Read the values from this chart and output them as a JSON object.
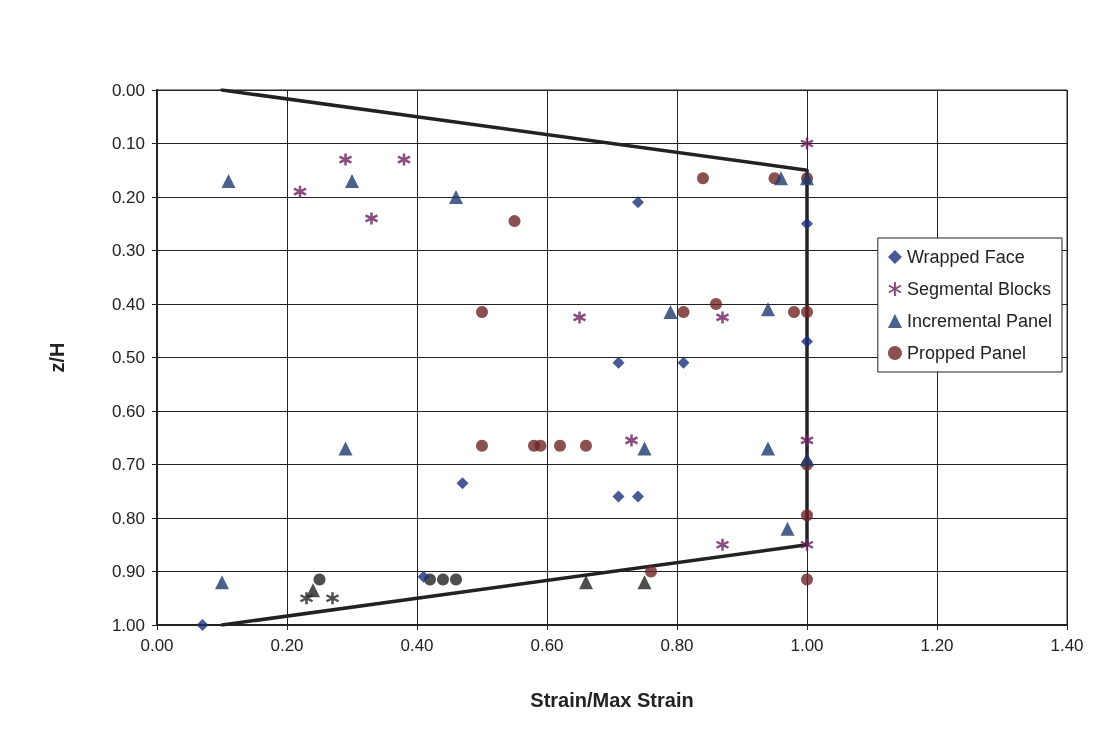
{
  "chart_data": {
    "type": "scatter",
    "xlabel": "Strain/Max Strain",
    "ylabel": "z/H",
    "xlim": [
      0,
      1.4
    ],
    "xticks": [
      {
        "value": 0,
        "label": "0.00"
      },
      {
        "value": 0.2,
        "label": "0.20"
      },
      {
        "value": 0.4,
        "label": "0.40"
      },
      {
        "value": 0.6,
        "label": "0.60"
      },
      {
        "value": 0.8,
        "label": "0.80"
      },
      {
        "value": 1.0,
        "label": "1.00"
      },
      {
        "value": 1.2,
        "label": "1.20"
      },
      {
        "value": 1.4,
        "label": "1.40"
      }
    ],
    "ylim": [
      1,
      0
    ],
    "yticks": [
      {
        "value": 0,
        "label": "0.00"
      },
      {
        "value": 0.1,
        "label": "0.10"
      },
      {
        "value": 0.2,
        "label": "0.20"
      },
      {
        "value": 0.3,
        "label": "0.30"
      },
      {
        "value": 0.4,
        "label": "0.40"
      },
      {
        "value": 0.5,
        "label": "0.50"
      },
      {
        "value": 0.6,
        "label": "0.60"
      },
      {
        "value": 0.7,
        "label": "0.70"
      },
      {
        "value": 0.8,
        "label": "0.80"
      },
      {
        "value": 0.9,
        "label": "0.90"
      },
      {
        "value": 1.0,
        "label": "1.00"
      }
    ],
    "grid": true,
    "legend": "right",
    "series": [
      {
        "type": "line",
        "color": "#222222",
        "marker": "none",
        "line_style": "solid",
        "x": [
          0.1,
          1.0,
          1.0,
          0.1
        ],
        "values": [
          0,
          0.15,
          0.85,
          1.0
        ]
      },
      {
        "name": "Wrapped Face",
        "color": "#1a2f7a",
        "marker": "diamond",
        "x": [
          0.07,
          0.74,
          1.0,
          1.0,
          0.71,
          0.81,
          0.71,
          0.74,
          0.47,
          0.41
        ],
        "values": [
          1.0,
          0.21,
          0.25,
          0.47,
          0.51,
          0.51,
          0.76,
          0.76,
          0.735,
          0.91
        ]
      },
      {
        "name": "Segmental Blocks",
        "color": "#6b1f5e",
        "marker": "cross",
        "x": [
          0.22,
          0.29,
          0.38,
          0.33,
          0.65,
          1.0,
          0.87,
          0.73,
          1.0,
          0.87,
          1.0,
          0.23,
          0.27
        ],
        "values": [
          0.19,
          0.13,
          0.13,
          0.24,
          0.425,
          0.1,
          0.425,
          0.655,
          0.655,
          0.85,
          0.85,
          0.95,
          0.95
        ],
        "colors": [
          "#6b1f5e",
          "#6b1f5e",
          "#6b1f5e",
          "#6b1f5e",
          "#6b1f5e",
          "#6b1f5e",
          "#6b1f5e",
          "#6b1f5e",
          "#6b1f5e",
          "#6b1f5e",
          "#6b1f5e",
          "#222222",
          "#222222"
        ]
      },
      {
        "name": "Incremental Panel",
        "color": "#1c3a6e",
        "marker": "triangle",
        "x": [
          0.11,
          0.3,
          0.46,
          0.96,
          1.0,
          0.79,
          0.94,
          0.29,
          0.75,
          0.94,
          0.97,
          1.0,
          0.1,
          0.24,
          0.66,
          0.75
        ],
        "values": [
          0.17,
          0.17,
          0.2,
          0.165,
          0.165,
          0.415,
          0.41,
          0.67,
          0.67,
          0.67,
          0.82,
          0.69,
          0.92,
          0.935,
          0.92,
          0.92
        ],
        "colors": [
          "#1c3a6e",
          "#1c3a6e",
          "#1c3a6e",
          "#1c3a6e",
          "#1c3a6e",
          "#1c3a6e",
          "#1c3a6e",
          "#1c3a6e",
          "#1c3a6e",
          "#1c3a6e",
          "#1c3a6e",
          "#1c3a6e",
          "#1c3a6e",
          "#222222",
          "#222222",
          "#222222"
        ]
      },
      {
        "name": "Propped Panel",
        "color": "#6e2424",
        "marker": "circle",
        "x": [
          0.55,
          0.5,
          0.84,
          0.95,
          1.0,
          0.86,
          0.81,
          0.98,
          1.0,
          0.5,
          0.58,
          0.59,
          0.62,
          0.66,
          1.0,
          1.0,
          0.76,
          1.0,
          0.25,
          0.42,
          0.44,
          0.46
        ],
        "values": [
          0.245,
          0.415,
          0.165,
          0.165,
          0.165,
          0.4,
          0.415,
          0.415,
          0.415,
          0.665,
          0.665,
          0.665,
          0.665,
          0.665,
          0.7,
          0.795,
          0.9,
          0.915,
          0.915,
          0.915,
          0.915,
          0.915
        ],
        "colors": [
          "#6e2424",
          "#6e2424",
          "#6e2424",
          "#6e2424",
          "#6e2424",
          "#6e2424",
          "#6e2424",
          "#6e2424",
          "#6e2424",
          "#6e2424",
          "#6e2424",
          "#6e2424",
          "#6e2424",
          "#6e2424",
          "#6e2424",
          "#6e2424",
          "#6e2424",
          "#6e2424",
          "#222222",
          "#222222",
          "#222222",
          "#222222"
        ]
      }
    ]
  }
}
